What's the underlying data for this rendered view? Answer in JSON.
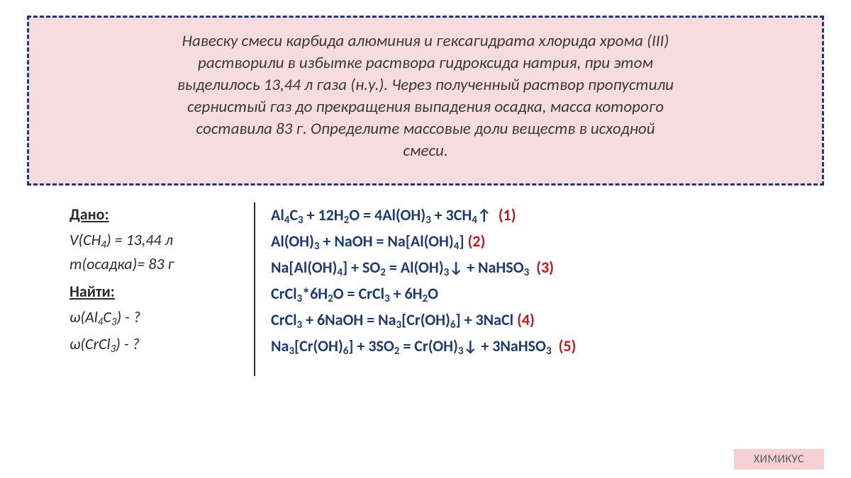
{
  "problem_box": {
    "bg": "#f7dcdf",
    "border": "#1f3a6e",
    "text_color": "#3a3a3a",
    "lines": [
      "Навеску смеси карбида алюминия и гексагидрата хлорида хрома (III)",
      "растворили в избытке раствора гидроксида натрия, при этом",
      "выделилось 13,44 л газа (н.у.). Через полученный раствор пропустили",
      "сернистый газ до прекращения выпадения осадка, масса которого",
      "составила 83 г. Определите массовые доли веществ в исходной",
      "смеси."
    ]
  },
  "given": {
    "label_dano": "Дано:",
    "v_ch4": "V(CH₄) = 13,44 л",
    "m_osadka": "m(осадка)= 83 г",
    "label_naiti": "Найти:",
    "w_al4c3": "ω(Al₄C₃) - ?",
    "w_crcl3": "ω(CrCl₃) - ?"
  },
  "equations": [
    {
      "text": "Al₄C₃ + 12H₂O = 4Al(OH)₃ + 3CH₄↑",
      "num": "(1)"
    },
    {
      "text": "Al(OH)₃ + NaOH = Na[Al(OH)₄]",
      "num": "(2)"
    },
    {
      "text": "Na[Al(OH)₄] + SO₂ = Al(OH)₃↓ + NaHSO₃",
      "num": "(3)"
    },
    {
      "text": "CrCl₃*6H₂O = CrCl₃ + 6H₂O",
      "num": ""
    },
    {
      "text": "CrCl₃ + 6NaOH = Na₃[Cr(OH)₆] + 3NaCl",
      "num": "(4)"
    },
    {
      "text": "Na₃[Cr(OH)₆] + 3SO₂ = Cr(OH)₃↓ + 3NaHSO₃",
      "num": "(5)"
    }
  ],
  "badge": "ХИМИКУС",
  "colors": {
    "eq_text": "#1f3a6e",
    "eq_num": "#c01722",
    "badge_bg": "#f4cfd3"
  }
}
